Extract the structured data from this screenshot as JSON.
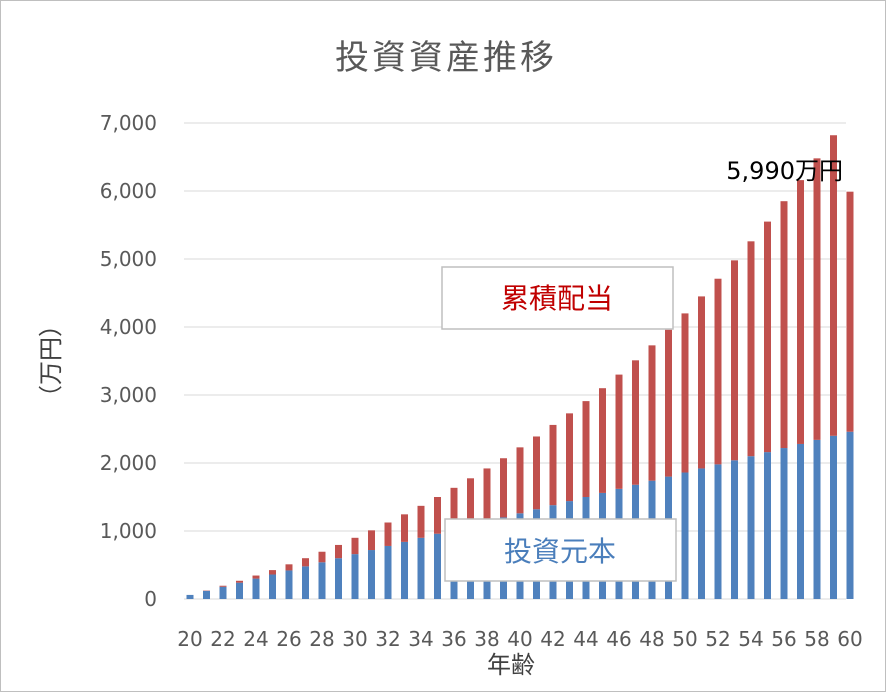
{
  "chart_data": {
    "type": "bar",
    "stacked": true,
    "title": "投資資産推移",
    "xlabel": "年齢",
    "ylabel": "（万円）",
    "ylim": [
      0,
      7000
    ],
    "yticks": [
      "0",
      "1,000",
      "2,000",
      "3,000",
      "4,000",
      "5,000",
      "6,000",
      "7,000"
    ],
    "grid": true,
    "categories": [
      20,
      21,
      22,
      23,
      24,
      25,
      26,
      27,
      28,
      29,
      30,
      31,
      32,
      33,
      34,
      35,
      36,
      37,
      38,
      39,
      40,
      41,
      42,
      43,
      44,
      45,
      46,
      47,
      48,
      49,
      50,
      51,
      52,
      53,
      54,
      55,
      56,
      57,
      58,
      59,
      60
    ],
    "xtick_labels": [
      "20",
      "22",
      "24",
      "26",
      "28",
      "30",
      "32",
      "34",
      "36",
      "38",
      "40",
      "42",
      "44",
      "46",
      "48",
      "50",
      "52",
      "54",
      "56",
      "58",
      "60"
    ],
    "series": [
      {
        "name": "投資元本",
        "color": "#4f81bd",
        "values": [
          60,
          120,
          180,
          240,
          300,
          360,
          420,
          480,
          540,
          600,
          660,
          720,
          780,
          840,
          900,
          960,
          1020,
          1080,
          1140,
          1200,
          1260,
          1320,
          1380,
          1440,
          1500,
          1560,
          1620,
          1680,
          1740,
          1800,
          1860,
          1920,
          1980,
          2040,
          2100,
          2160,
          2220,
          2280,
          2340,
          2400,
          2460
        ]
      },
      {
        "name": "累積配当",
        "color": "#c0504d",
        "values": [
          0,
          5,
          15,
          28,
          45,
          65,
          90,
          120,
          155,
          195,
          240,
          290,
          345,
          405,
          470,
          540,
          615,
          695,
          780,
          870,
          970,
          1070,
          1180,
          1290,
          1410,
          1540,
          1680,
          1830,
          1990,
          2160,
          2340,
          2530,
          2730,
          2940,
          3160,
          3390,
          3630,
          3880,
          4140,
          4420,
          3530
        ]
      }
    ],
    "annotations": [
      {
        "text": "5,990万円",
        "target": "last-bar-total"
      }
    ],
    "series_boxes": [
      {
        "text": "累積配当",
        "series": "累積配当",
        "color": "#c00000"
      },
      {
        "text": "投資元本",
        "series": "投資元本",
        "color": "#4a7ebb"
      }
    ]
  }
}
